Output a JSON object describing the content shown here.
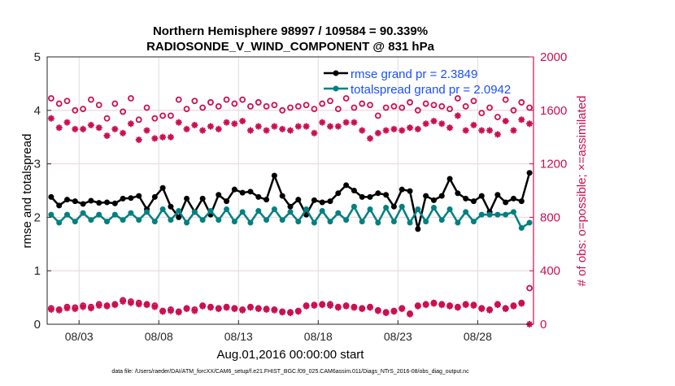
{
  "chart_data": {
    "type": "line",
    "title": "Northern Hemisphere 98997 / 109584 = 90.339%",
    "subtitle": "RADIOSONDE_V_WIND_COMPONENT @ 831 hPa",
    "xlabel": "Aug.01,2016 00:00:00 start",
    "ylabel": "rmse and totalspread",
    "ylabel_right": "# of obs: o=possible; ×=assimilated",
    "footnote": "data file: /Users/raeder/DAI/ATM_forcXX/CAM6_setup/f.e21.FHIST_BGC.f09_025.CAM6assim.011/Diags_NTrS_2016-08/obs_diag_output.nc",
    "xlim_days": [
      0,
      30.5
    ],
    "ylim": [
      0,
      5
    ],
    "ylim_right": [
      0,
      2000
    ],
    "x_start_day": 0.25,
    "x_step_day": 0.5,
    "xticks": [
      {
        "day": 2,
        "label": "08/03"
      },
      {
        "day": 7,
        "label": "08/08"
      },
      {
        "day": 12,
        "label": "08/13"
      },
      {
        "day": 17,
        "label": "08/18"
      },
      {
        "day": 22,
        "label": "08/23"
      },
      {
        "day": 27,
        "label": "08/28"
      }
    ],
    "yticks": [
      "0",
      "1",
      "2",
      "3",
      "4",
      "5"
    ],
    "yticks_right": [
      "0",
      "400",
      "800",
      "1200",
      "1600",
      "2000"
    ],
    "grid": true,
    "legend_position": "top-right",
    "series": [
      {
        "name": "rmse grand pr = 2.3849",
        "axis": "left",
        "color": "#000000",
        "values": [
          2.38,
          2.22,
          2.33,
          2.3,
          2.25,
          2.31,
          2.27,
          2.28,
          2.26,
          2.35,
          2.36,
          2.4,
          2.15,
          2.38,
          2.55,
          2.2,
          2.0,
          2.35,
          2.1,
          2.35,
          2.05,
          2.42,
          2.3,
          2.52,
          2.46,
          2.48,
          2.38,
          2.33,
          2.78,
          2.4,
          2.2,
          2.33,
          2.05,
          2.32,
          2.28,
          2.3,
          2.45,
          2.6,
          2.5,
          2.38,
          2.38,
          2.45,
          2.42,
          2.2,
          2.52,
          2.49,
          1.78,
          2.4,
          2.32,
          2.4,
          2.72,
          2.45,
          2.35,
          2.3,
          2.4,
          2.1,
          2.42,
          2.28,
          2.35,
          2.3,
          2.83
        ]
      },
      {
        "name": "totalspread grand pr = 2.0942",
        "axis": "left",
        "color": "#008080",
        "values": [
          2.05,
          1.9,
          2.05,
          1.92,
          2.08,
          1.95,
          2.05,
          1.92,
          2.05,
          1.95,
          2.08,
          1.95,
          2.1,
          1.92,
          2.15,
          1.95,
          2.12,
          1.9,
          2.1,
          1.95,
          2.12,
          1.95,
          2.15,
          1.92,
          2.1,
          1.9,
          2.12,
          1.95,
          2.15,
          1.95,
          2.1,
          1.92,
          2.15,
          1.9,
          2.12,
          1.92,
          2.08,
          1.95,
          2.2,
          1.92,
          2.15,
          1.9,
          2.18,
          1.92,
          2.2,
          1.9,
          2.15,
          1.92,
          2.18,
          1.95,
          2.15,
          1.9,
          2.1,
          1.92,
          2.05,
          2.05,
          2.05,
          2.05,
          2.1,
          1.8,
          1.9
        ]
      },
      {
        "name": "possible upper",
        "axis": "right",
        "marker": "circle",
        "color": "#cc0f4f",
        "values": [
          1690,
          1650,
          1670,
          1600,
          1610,
          1680,
          1640,
          1540,
          1650,
          1590,
          1690,
          1530,
          1620,
          1540,
          1560,
          1560,
          1680,
          1610,
          1670,
          1620,
          1660,
          1630,
          1680,
          1650,
          1680,
          1630,
          1660,
          1630,
          1640,
          1600,
          1620,
          1630,
          1640,
          1610,
          1650,
          1670,
          1610,
          1690,
          1620,
          1650,
          1640,
          1560,
          1620,
          1630,
          1620,
          1660,
          1600,
          1650,
          1640,
          1630,
          1610,
          1690,
          1630,
          1670,
          1580,
          1620,
          1550,
          1680,
          1600,
          1660,
          1620
        ]
      },
      {
        "name": "assimilated upper",
        "axis": "right",
        "marker": "asterisk",
        "color": "#cc0f4f",
        "values": [
          1540,
          1470,
          1510,
          1460,
          1460,
          1490,
          1470,
          1410,
          1460,
          1430,
          1500,
          1380,
          1450,
          1390,
          1400,
          1400,
          1510,
          1460,
          1490,
          1450,
          1480,
          1460,
          1510,
          1500,
          1520,
          1450,
          1480,
          1450,
          1480,
          1460,
          1450,
          1480,
          1480,
          1430,
          1510,
          1480,
          1480,
          1510,
          1510,
          1450,
          1390,
          1430,
          1450,
          1460,
          1450,
          1470,
          1460,
          1500,
          1520,
          1500,
          1470,
          1560,
          1450,
          1490,
          1450,
          1450,
          1420,
          1520,
          1450,
          1530,
          1500
        ]
      },
      {
        "name": "possible lower",
        "axis": "right",
        "marker": "circle",
        "color": "#cc0f4f",
        "values": [
          120,
          110,
          130,
          125,
          140,
          130,
          150,
          140,
          150,
          180,
          170,
          160,
          150,
          140,
          100,
          110,
          95,
          120,
          110,
          140,
          130,
          120,
          130,
          120,
          110,
          130,
          120,
          115,
          110,
          95,
          90,
          100,
          140,
          145,
          150,
          150,
          130,
          140,
          130,
          120,
          130,
          105,
          90,
          100,
          120,
          80,
          140,
          150,
          160,
          150,
          140,
          130,
          150,
          145,
          120,
          110,
          150,
          120,
          140,
          160,
          270
        ]
      },
      {
        "name": "assimilated lower",
        "axis": "right",
        "marker": "asterisk",
        "color": "#cc0f4f",
        "values": [
          110,
          105,
          120,
          115,
          130,
          120,
          140,
          135,
          145,
          170,
          160,
          150,
          145,
          130,
          95,
          100,
          90,
          115,
          100,
          135,
          125,
          115,
          125,
          115,
          105,
          125,
          115,
          110,
          105,
          90,
          85,
          95,
          135,
          140,
          145,
          140,
          125,
          135,
          125,
          115,
          125,
          100,
          85,
          95,
          115,
          75,
          135,
          145,
          155,
          145,
          135,
          125,
          145,
          140,
          115,
          105,
          145,
          115,
          135,
          155,
          0
        ]
      }
    ]
  }
}
